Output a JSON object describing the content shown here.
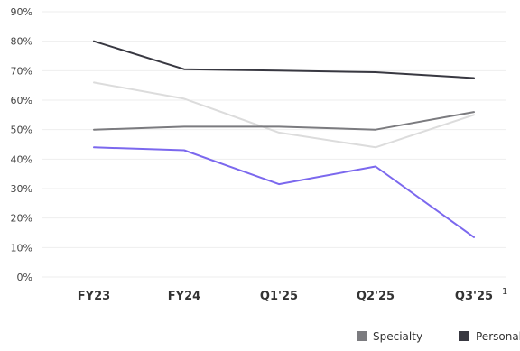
{
  "chart_data": {
    "type": "line",
    "categories": [
      "FY23",
      "FY24",
      "Q1'25",
      "Q2'25",
      "Q3'25"
    ],
    "footnote": "1",
    "y_ticks": [
      "0%",
      "10%",
      "20%",
      "30%",
      "40%",
      "50%",
      "60%",
      "70%",
      "80%",
      "90%"
    ],
    "ylim": [
      0,
      90
    ],
    "y_unit": "%",
    "grid": true,
    "legend_position": "bottom-right",
    "series": [
      {
        "key": "s1",
        "color": "#383841",
        "values": [
          80,
          70.5,
          70,
          69.5,
          67.5
        ],
        "label": "Personal"
      },
      {
        "key": "s2",
        "color": "#dcdcdc",
        "values": [
          66,
          60.5,
          49,
          44,
          55
        ]
      },
      {
        "key": "s3",
        "name": "Specialty",
        "color": "#7b7b7f",
        "values": [
          50,
          51,
          51,
          50,
          56
        ]
      },
      {
        "key": "s4",
        "color": "#7b68ee",
        "values": [
          44,
          43,
          31.5,
          37.5,
          13.5
        ]
      }
    ]
  }
}
